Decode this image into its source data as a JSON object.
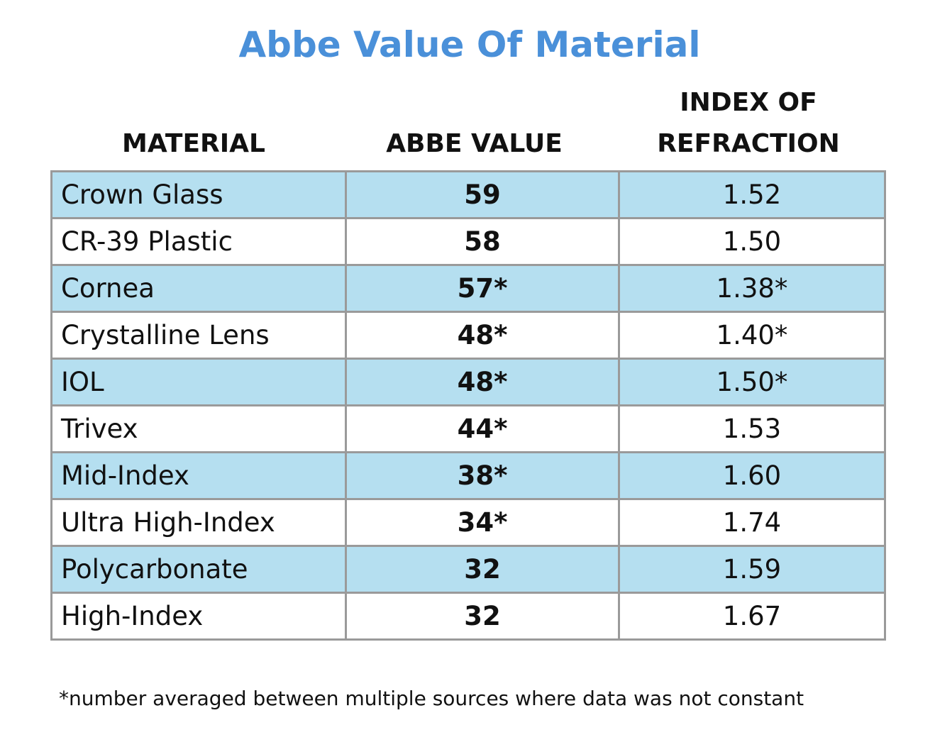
{
  "title": "Abbe Value Of Material",
  "footnote": "*number averaged between multiple sources where data was not constant",
  "colors": {
    "title": "#4a90d9",
    "row_highlight": "#b5dff0",
    "border": "#9a9a9a"
  },
  "chart_data": {
    "type": "table",
    "title": "Abbe Value Of Material",
    "columns": [
      "MATERIAL",
      "ABBE VALUE",
      "INDEX OF REFRACTION"
    ],
    "rows": [
      [
        "Crown Glass",
        "59",
        "1.52"
      ],
      [
        "CR-39 Plastic",
        "58",
        "1.50"
      ],
      [
        "Cornea",
        "57*",
        "1.38*"
      ],
      [
        "Crystalline Lens",
        "48*",
        "1.40*"
      ],
      [
        "IOL",
        "48*",
        "1.50*"
      ],
      [
        "Trivex",
        "44*",
        "1.53"
      ],
      [
        "Mid-Index",
        "38*",
        "1.60"
      ],
      [
        "Ultra High-Index",
        "34*",
        "1.74"
      ],
      [
        "Polycarbonate",
        "32",
        "1.59"
      ],
      [
        "High-Index",
        "32",
        "1.67"
      ]
    ]
  }
}
